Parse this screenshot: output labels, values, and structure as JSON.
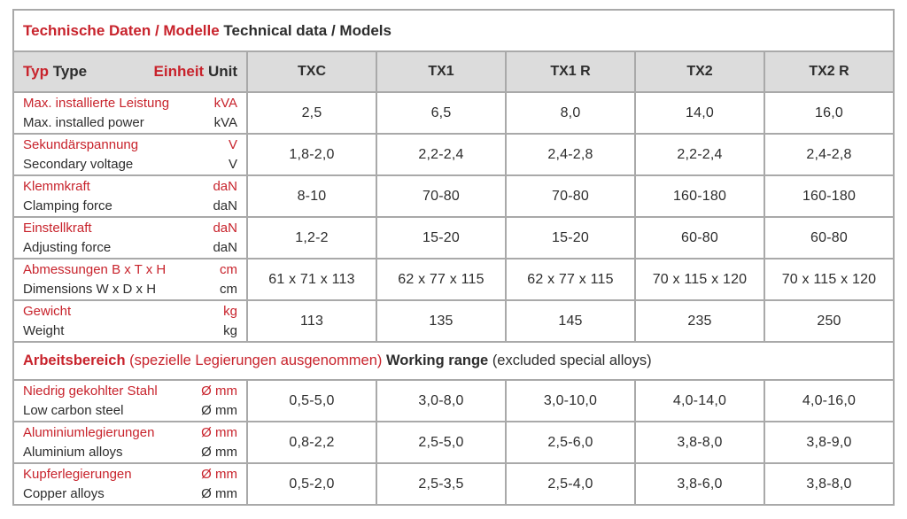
{
  "title": {
    "de": "Technische Daten / Modelle",
    "en": "Technical data / Models"
  },
  "header": {
    "type_de": "Typ",
    "type_en": "Type",
    "unit_de": "Einheit",
    "unit_en": "Unit",
    "models": [
      "TXC",
      "TX1",
      "TX1 R",
      "TX2",
      "TX2 R"
    ]
  },
  "rows": [
    {
      "label_de": "Max. installierte Leistung",
      "label_en": "Max. installed power",
      "unit_de": "kVA",
      "unit_en": "kVA",
      "values": [
        "2,5",
        "6,5",
        "8,0",
        "14,0",
        "16,0"
      ]
    },
    {
      "label_de": "Sekundärspannung",
      "label_en": "Secondary voltage",
      "unit_de": "V",
      "unit_en": "V",
      "values": [
        "1,8-2,0",
        "2,2-2,4",
        "2,4-2,8",
        "2,2-2,4",
        "2,4-2,8"
      ]
    },
    {
      "label_de": "Klemmkraft",
      "label_en": "Clamping force",
      "unit_de": "daN",
      "unit_en": "daN",
      "values": [
        "8-10",
        "70-80",
        "70-80",
        "160-180",
        "160-180"
      ]
    },
    {
      "label_de": "Einstellkraft",
      "label_en": "Adjusting force",
      "unit_de": "daN",
      "unit_en": "daN",
      "values": [
        "1,2-2",
        "15-20",
        "15-20",
        "60-80",
        "60-80"
      ]
    },
    {
      "label_de": "Abmessungen B x T x H",
      "label_en": "Dimensions W x D x H",
      "unit_de": "cm",
      "unit_en": "cm",
      "values": [
        "61 x 71 x 113",
        "62 x 77 x 115",
        "62 x 77 x 115",
        "70 x 115 x 120",
        "70 x 115 x 120"
      ]
    },
    {
      "label_de": "Gewicht",
      "label_en": "Weight",
      "unit_de": "kg",
      "unit_en": "kg",
      "values": [
        "113",
        "135",
        "145",
        "235",
        "250"
      ]
    }
  ],
  "section": {
    "de_bold": "Arbeitsbereich",
    "de_note": "(spezielle Legierungen ausgenommen)",
    "en_bold": "Working range",
    "en_note": "(excluded special alloys)"
  },
  "range_rows": [
    {
      "label_de": "Niedrig gekohlter Stahl",
      "label_en": "Low carbon steel",
      "unit_de": "Ø mm",
      "unit_en": "Ø mm",
      "values": [
        "0,5-5,0",
        "3,0-8,0",
        "3,0-10,0",
        "4,0-14,0",
        "4,0-16,0"
      ]
    },
    {
      "label_de": "Aluminiumlegierungen",
      "label_en": "Aluminium alloys",
      "unit_de": "Ø mm",
      "unit_en": "Ø mm",
      "values": [
        "0,8-2,2",
        "2,5-5,0",
        "2,5-6,0",
        "3,8-8,0",
        "3,8-9,0"
      ]
    },
    {
      "label_de": "Kupferlegierungen",
      "label_en": "Copper alloys",
      "unit_de": "Ø mm",
      "unit_en": "Ø mm",
      "values": [
        "0,5-2,0",
        "2,5-3,5",
        "2,5-4,0",
        "3,8-6,0",
        "3,8-8,0"
      ]
    }
  ],
  "colors": {
    "accent_red": "#c8232c",
    "header_bg": "#dcdcdc",
    "border": "#a9a9a9",
    "text": "#2d2d2d"
  }
}
